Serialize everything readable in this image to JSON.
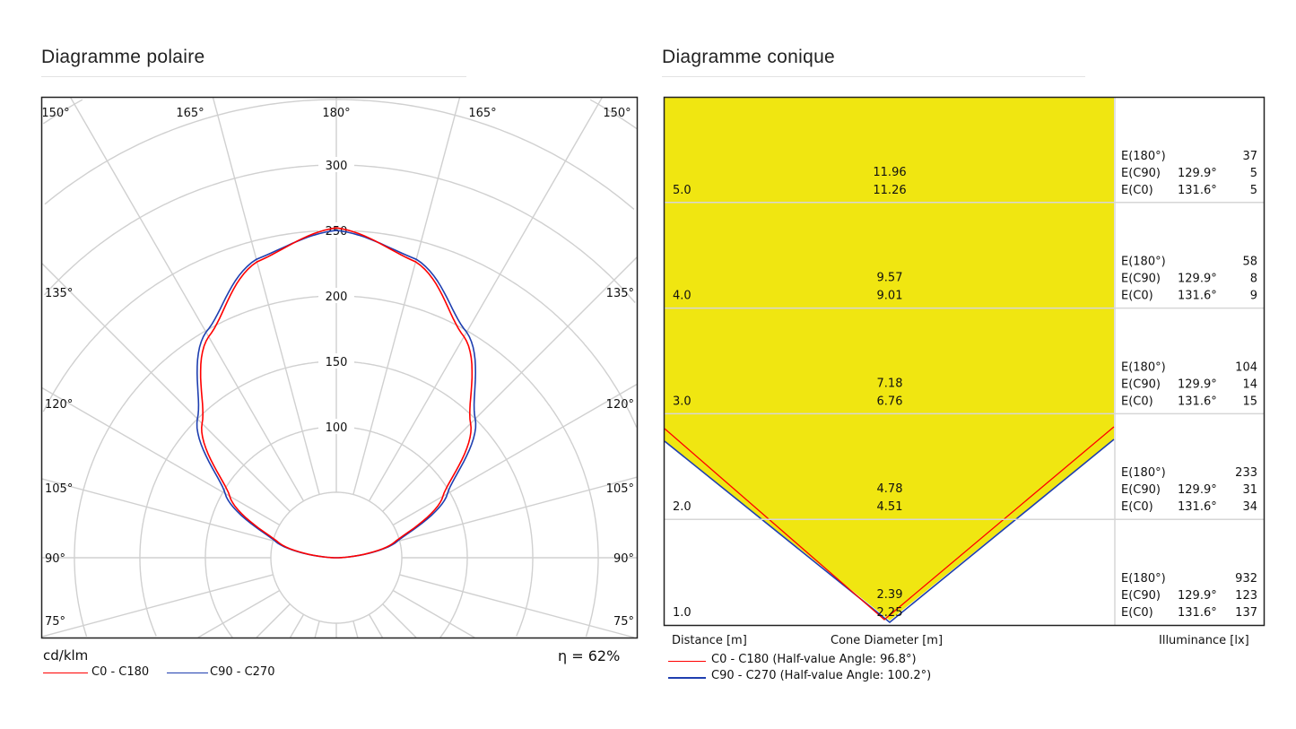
{
  "polar": {
    "title": "Diagramme polaire",
    "unit": "cd/klm",
    "efficiency": "η = 62%",
    "legend": [
      {
        "label": "C0 - C180",
        "color": "#ff0000"
      },
      {
        "label": "C90 - C270",
        "color": "#1f3fb0"
      }
    ]
  },
  "cone": {
    "title": "Diagramme conique",
    "xlabel_distance": "Distance [m]",
    "xlabel_diameter": "Cone Diameter [m]",
    "xlabel_illuminance": "Illuminance [lx]",
    "legend": [
      {
        "label": "C0 - C180 (Half-value Angle: 96.8°)",
        "color": "#ff0000"
      },
      {
        "label": "C90 - C270 (Half-value Angle: 100.2°)",
        "color": "#1f3fb0"
      }
    ],
    "fill_color": "#f0e611"
  },
  "chart_data": [
    {
      "type": "polar",
      "title": "Diagramme polaire",
      "unit": "cd/klm",
      "radial_ticks": [
        100,
        150,
        200,
        250,
        300
      ],
      "angle_labels_left": [
        "150°",
        "165°",
        "180°",
        "165°",
        "150°"
      ],
      "angle_labels_side": [
        "135°",
        "120°",
        "105°",
        "90°",
        "75°"
      ],
      "angles_deg": [
        180,
        165,
        150,
        135,
        120,
        105,
        90
      ],
      "series": [
        {
          "name": "C0 - C180",
          "color": "#ff0000",
          "values": [
            252,
            234,
            195,
            145,
            94,
            46,
            0
          ]
        },
        {
          "name": "C90 - C270",
          "color": "#1f3fb0",
          "values": [
            250,
            236,
            199,
            150,
            98,
            48,
            0
          ]
        }
      ],
      "annotation": "η = 62%"
    },
    {
      "type": "table",
      "title": "Diagramme conique",
      "rows": [
        {
          "distance": "5.0",
          "d1": "11.96",
          "d2": "11.26",
          "e180": "37",
          "c90_angle": "129.9°",
          "ec90": "5",
          "c0_angle": "131.6°",
          "ec0": "5"
        },
        {
          "distance": "4.0",
          "d1": "9.57",
          "d2": "9.01",
          "e180": "58",
          "c90_angle": "129.9°",
          "ec90": "8",
          "c0_angle": "131.6°",
          "ec0": "9"
        },
        {
          "distance": "3.0",
          "d1": "7.18",
          "d2": "6.76",
          "e180": "104",
          "c90_angle": "129.9°",
          "ec90": "14",
          "c0_angle": "131.6°",
          "ec0": "15"
        },
        {
          "distance": "2.0",
          "d1": "4.78",
          "d2": "4.51",
          "e180": "233",
          "c90_angle": "129.9°",
          "ec90": "31",
          "c0_angle": "131.6°",
          "ec0": "34"
        },
        {
          "distance": "1.0",
          "d1": "2.39",
          "d2": "2.25",
          "e180": "932",
          "c90_angle": "129.9°",
          "ec90": "123",
          "c0_angle": "131.6°",
          "ec0": "137"
        }
      ],
      "labels": {
        "e180": "E(180°)",
        "ec90": "E(C90)",
        "ec0": "E(C0)"
      }
    }
  ]
}
